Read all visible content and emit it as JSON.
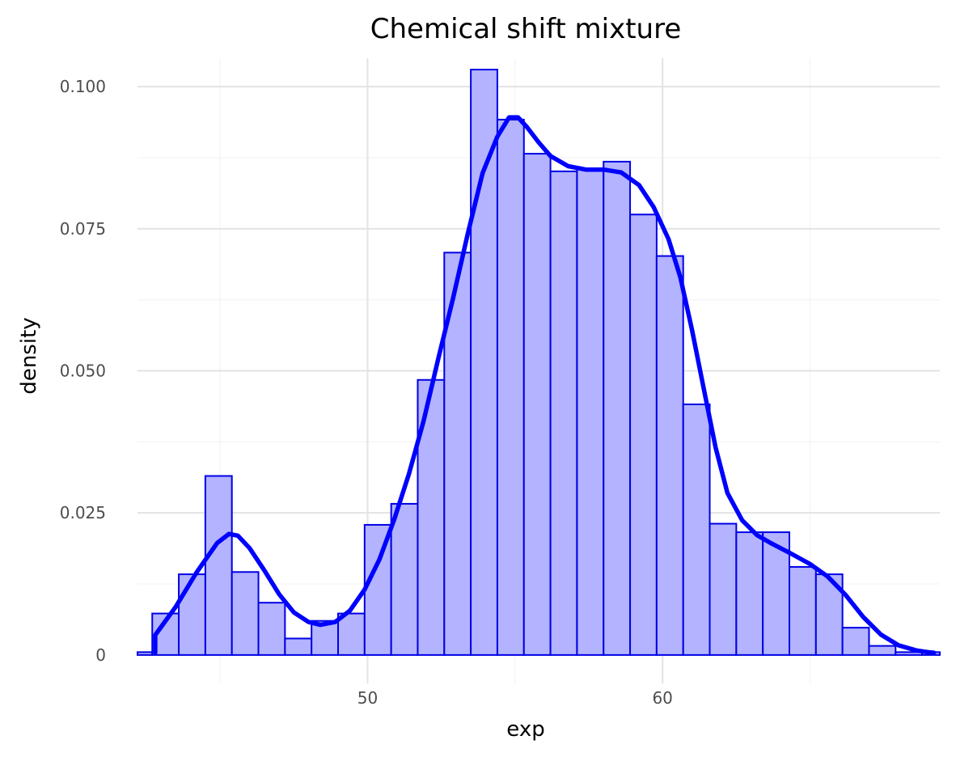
{
  "chart_data": {
    "type": "bar",
    "title": "Chemical shift mixture",
    "xlabel": "exp",
    "ylabel": "density",
    "xlim": [
      42.2,
      69.4
    ],
    "ylim": [
      -0.005,
      0.105
    ],
    "grid": true,
    "legend": "none",
    "x_ticks": [
      {
        "value": 50,
        "label": "50"
      },
      {
        "value": 60,
        "label": "60"
      }
    ],
    "y_ticks": [
      {
        "value": 0,
        "label": "0"
      },
      {
        "value": 0.025,
        "label": "0.025"
      },
      {
        "value": 0.05,
        "label": "0.050"
      },
      {
        "value": 0.075,
        "label": "0.075"
      },
      {
        "value": 0.1,
        "label": "0.100"
      }
    ],
    "bin_edges": [
      42.2,
      42.7,
      43.6,
      44.5,
      45.4,
      46.3,
      47.2,
      48.1,
      49.0,
      49.9,
      50.8,
      51.7,
      52.6,
      53.5,
      54.4,
      55.3,
      56.2,
      57.1,
      58.0,
      58.9,
      59.8,
      60.7,
      61.6,
      62.5,
      63.4,
      64.3,
      65.2,
      66.1,
      67.0,
      67.9,
      68.8,
      69.4
    ],
    "values": [
      0.0005,
      0.0073,
      0.0142,
      0.0315,
      0.0146,
      0.0092,
      0.0029,
      0.006,
      0.0073,
      0.0229,
      0.0266,
      0.0484,
      0.0708,
      0.103,
      0.0942,
      0.0882,
      0.0851,
      0.0856,
      0.0868,
      0.0775,
      0.0702,
      0.0441,
      0.0231,
      0.0216,
      0.0216,
      0.0155,
      0.0142,
      0.0048,
      0.0016,
      0.0005,
      0.0005
    ],
    "density_curve": {
      "x": [
        42.8,
        42.8,
        43.5,
        44.2,
        44.9,
        45.3,
        45.6,
        46.0,
        46.5,
        47.0,
        47.5,
        48.0,
        48.4,
        48.9,
        49.4,
        49.9,
        50.4,
        50.9,
        51.4,
        51.9,
        52.4,
        52.9,
        53.4,
        53.9,
        54.4,
        54.8,
        55.1,
        55.4,
        55.8,
        56.2,
        56.8,
        57.4,
        58.0,
        58.6,
        59.2,
        59.7,
        60.2,
        60.6,
        61.0,
        61.4,
        61.8,
        62.2,
        62.7,
        63.2,
        63.7,
        64.3,
        65.0,
        65.6,
        66.2,
        66.8,
        67.4,
        68.0,
        68.6,
        69.0,
        69.2
      ],
      "y": [
        0.0004,
        0.0035,
        0.0085,
        0.0145,
        0.0197,
        0.0213,
        0.021,
        0.0188,
        0.0149,
        0.0107,
        0.0075,
        0.0058,
        0.0053,
        0.0058,
        0.0078,
        0.0115,
        0.0168,
        0.0238,
        0.0318,
        0.0412,
        0.0522,
        0.0628,
        0.0742,
        0.0848,
        0.0912,
        0.0946,
        0.0946,
        0.0929,
        0.0902,
        0.0878,
        0.086,
        0.0854,
        0.0854,
        0.0849,
        0.0827,
        0.0788,
        0.0732,
        0.0665,
        0.0572,
        0.0468,
        0.0365,
        0.0285,
        0.0237,
        0.0211,
        0.0196,
        0.018,
        0.016,
        0.0138,
        0.0106,
        0.0067,
        0.0036,
        0.0017,
        0.0008,
        0.0005,
        0.0004
      ]
    },
    "colors": {
      "bar_fill": "#b3b3ff",
      "bar_stroke": "#0000e6",
      "curve": "#0000ff",
      "major_grid": "#e3e3e3",
      "minor_grid": "#f3f3f3"
    }
  }
}
